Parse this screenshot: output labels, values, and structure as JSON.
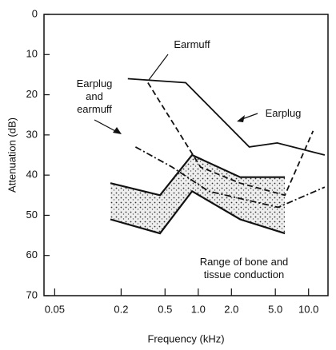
{
  "chart_data": {
    "type": "line",
    "x_label": "Frequency (kHz)",
    "y_label": "Attenuation (dB)",
    "xlim": [
      0.04,
      15
    ],
    "x_log": true,
    "xticks": [
      0.05,
      0.2,
      0.5,
      {
        "value": 1,
        "label": "1.0"
      },
      {
        "value": 2,
        "label": "2.0"
      },
      {
        "value": 5,
        "label": "5.0"
      },
      {
        "value": 10,
        "label": "10.0"
      }
    ],
    "ylim": [
      0,
      70
    ],
    "y_inverted": true,
    "yticks": [
      0,
      10,
      20,
      30,
      40,
      50,
      60,
      70
    ],
    "series": [
      {
        "name": "Earplug",
        "color": "#111",
        "dash": "solid",
        "x": [
          0.23,
          0.77,
          2.9,
          5.2,
          14
        ],
        "values": [
          16,
          17,
          33,
          32,
          35
        ]
      },
      {
        "name": "Earmuff",
        "color": "#111",
        "dash": "dashed",
        "x": [
          0.35,
          1.05,
          2.4,
          6.1,
          11
        ],
        "values": [
          17,
          38,
          42,
          45,
          29
        ]
      },
      {
        "name": "Earplug and earmuff",
        "color": "#111",
        "dash": "dashdot",
        "x": [
          0.27,
          0.58,
          1.24,
          5.3,
          14
        ],
        "values": [
          33,
          38,
          44,
          48,
          43
        ]
      }
    ],
    "band": {
      "name": "Range of bone and tissue conduction",
      "x": [
        0.16,
        0.45,
        0.88,
        2.4,
        6.1
      ],
      "low": [
        42,
        45,
        35,
        40.5,
        40.5
      ],
      "high": [
        51,
        54.5,
        44,
        51,
        54.5
      ]
    }
  }
}
